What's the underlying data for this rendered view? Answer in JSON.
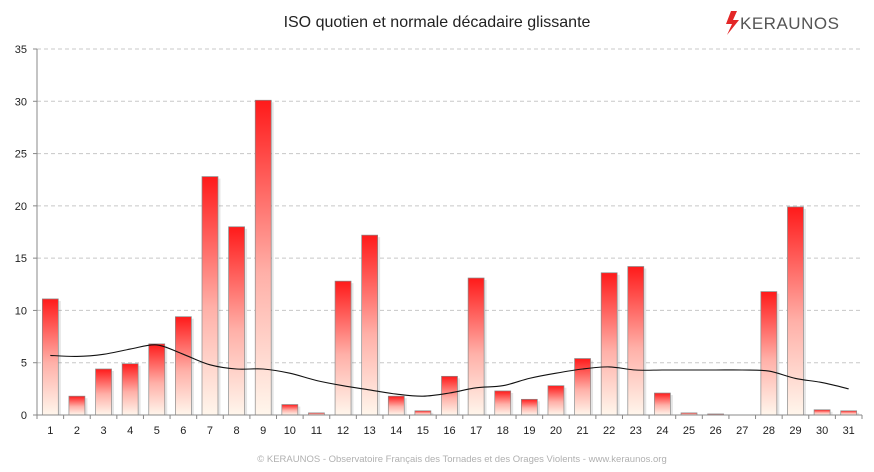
{
  "header": {
    "title": "ISO quotien et normale décadaire glissante",
    "logo_text": "KERAUNOS"
  },
  "footer": {
    "credit": "© KERAUNOS - Observatoire Français des Tornades et des Orages Violents - www.keraunos.org"
  },
  "colors": {
    "bar_top": "#ff1a1a",
    "bar_bottom": "#fff6ec",
    "bar_border": "#8a8a8a",
    "line": "#111111",
    "grid": "#c8c8c8",
    "logo_accent": "#e32727"
  },
  "chart_data": {
    "type": "bar",
    "title": "ISO quotien et normale décadaire glissante",
    "xlabel": "",
    "ylabel": "",
    "ylim": [
      0,
      35
    ],
    "yticks": [
      0,
      5,
      10,
      15,
      20,
      25,
      30,
      35
    ],
    "grid": true,
    "categories": [
      "1",
      "2",
      "3",
      "4",
      "5",
      "6",
      "7",
      "8",
      "9",
      "10",
      "11",
      "12",
      "13",
      "14",
      "15",
      "16",
      "17",
      "18",
      "19",
      "20",
      "21",
      "22",
      "23",
      "24",
      "25",
      "26",
      "27",
      "28",
      "29",
      "30",
      "31"
    ],
    "series": [
      {
        "values": [
          11.1,
          1.8,
          4.4,
          4.9,
          6.8,
          9.4,
          22.8,
          18.0,
          30.1,
          1.0,
          0.2,
          12.8,
          17.2,
          1.8,
          0.4,
          3.7,
          13.1,
          2.3,
          1.5,
          2.8,
          5.4,
          13.6,
          14.2,
          2.1,
          0.2,
          0.1,
          0.0,
          11.8,
          19.9,
          0.5,
          0.4
        ]
      },
      {
        "line_type": "line",
        "values": [
          5.7,
          5.6,
          5.8,
          6.3,
          6.7,
          5.8,
          4.8,
          4.4,
          4.4,
          4.0,
          3.3,
          2.8,
          2.4,
          2.0,
          1.8,
          2.1,
          2.6,
          2.8,
          3.5,
          4.0,
          4.4,
          4.6,
          4.3,
          4.3,
          4.3,
          4.3,
          4.3,
          4.2,
          3.5,
          3.1,
          2.5
        ]
      }
    ]
  }
}
